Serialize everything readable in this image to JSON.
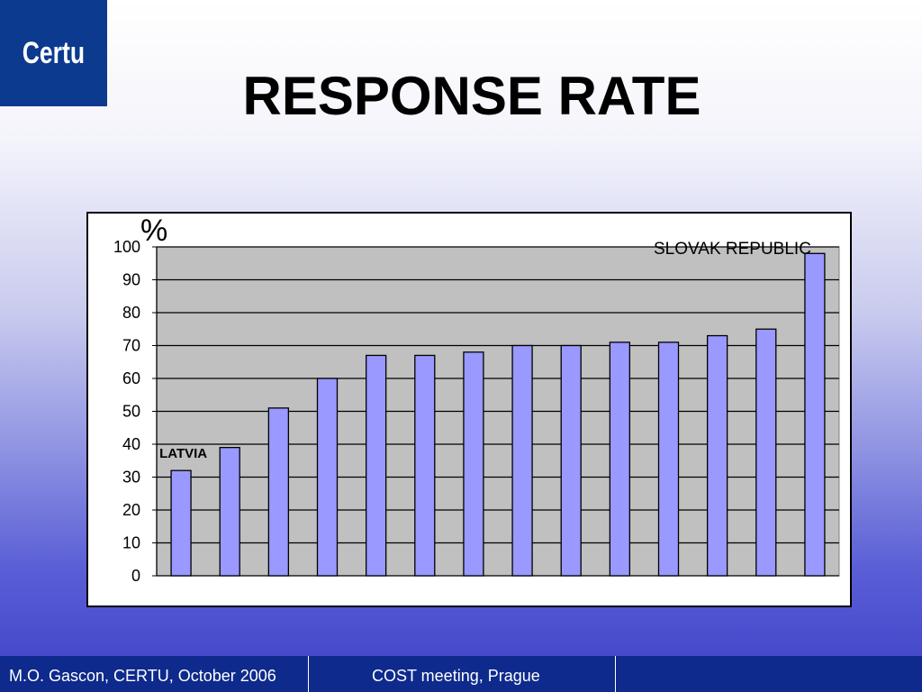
{
  "logo": {
    "text": "Certu"
  },
  "title": "RESPONSE RATE",
  "footer": {
    "left": "M.O. Gascon, CERTU, October 2006",
    "middle": "COST meeting, Prague"
  },
  "colors": {
    "bar_fill": "#9999ff",
    "plot_bg": "#c0c0c0",
    "logo_bg": "#0b3a8f",
    "footer_bg": "#0e2a8c"
  },
  "chart_data": {
    "type": "bar",
    "categories": [
      "LATVIA",
      "",
      "",
      "",
      "",
      "",
      "",
      "",
      "",
      "",
      "",
      "",
      "",
      "SLOVAK REPUBLIC"
    ],
    "values": [
      32,
      39,
      51,
      60,
      67,
      67,
      68,
      70,
      70,
      71,
      71,
      73,
      75,
      98
    ],
    "unit_label": "%",
    "ylim": [
      0,
      100
    ],
    "yticks": [
      "0",
      "10",
      "20",
      "30",
      "40",
      "50",
      "60",
      "70",
      "80",
      "90",
      "100"
    ],
    "grid": true,
    "legend": "none",
    "annotations": [
      {
        "text": "LATVIA",
        "bar_index": 0
      },
      {
        "text": "SLOVAK REPUBLIC",
        "bar_index": 13
      }
    ]
  }
}
